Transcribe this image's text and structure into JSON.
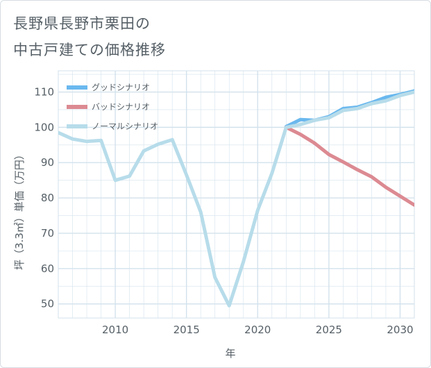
{
  "title": {
    "line1": "長野県長野市栗田の",
    "line2": "中古戸建ての価格推移"
  },
  "colors": {
    "good": "#6ab8ee",
    "bad": "#dc8a92",
    "normal": "#b7dcea",
    "grid": "#d3e2ec",
    "axis_text": "#555f66"
  },
  "chart_data": {
    "type": "line",
    "title": "長野県長野市栗田の中古戸建ての価格推移",
    "xlabel": "年",
    "ylabel": "坪（3.3㎡）単価（万円）",
    "xlim": [
      2006,
      2031
    ],
    "ylim": [
      46,
      116
    ],
    "x_ticks": [
      "2010",
      "2015",
      "2020",
      "2025",
      "2030"
    ],
    "y_ticks": [
      "50",
      "60",
      "70",
      "80",
      "90",
      "100",
      "110"
    ],
    "legend": {
      "position": "top-left"
    },
    "series": [
      {
        "name": "グッドシナリオ",
        "key": "good",
        "x": [
          2022,
          2023,
          2024,
          2025,
          2026,
          2027,
          2028,
          2029,
          2030,
          2031
        ],
        "values": [
          100.2,
          102.2,
          102.0,
          103.0,
          105.3,
          105.7,
          107.0,
          108.5,
          109.3,
          110.3
        ]
      },
      {
        "name": "バッドシナリオ",
        "key": "bad",
        "x": [
          2022,
          2023,
          2024,
          2025,
          2026,
          2027,
          2028,
          2029,
          2030,
          2031
        ],
        "values": [
          100.0,
          98.0,
          95.5,
          92.3,
          90.2,
          88.0,
          86.0,
          83.0,
          80.5,
          78.0
        ]
      },
      {
        "name": "ノーマルシナリオ",
        "key": "normal",
        "x": [
          2006,
          2007,
          2008,
          2009,
          2010,
          2011,
          2012,
          2013,
          2014,
          2015,
          2016,
          2017,
          2018,
          2019,
          2020,
          2021,
          2022,
          2023,
          2024,
          2025,
          2026,
          2027,
          2028,
          2029,
          2030,
          2031
        ],
        "values": [
          98.5,
          96.7,
          96.0,
          96.3,
          85.0,
          86.2,
          93.3,
          95.2,
          96.5,
          86.5,
          76.0,
          57.5,
          49.5,
          62.0,
          76.5,
          87.0,
          100.0,
          100.8,
          102.0,
          102.7,
          104.8,
          105.3,
          106.7,
          107.5,
          109.0,
          110.0
        ]
      }
    ]
  }
}
